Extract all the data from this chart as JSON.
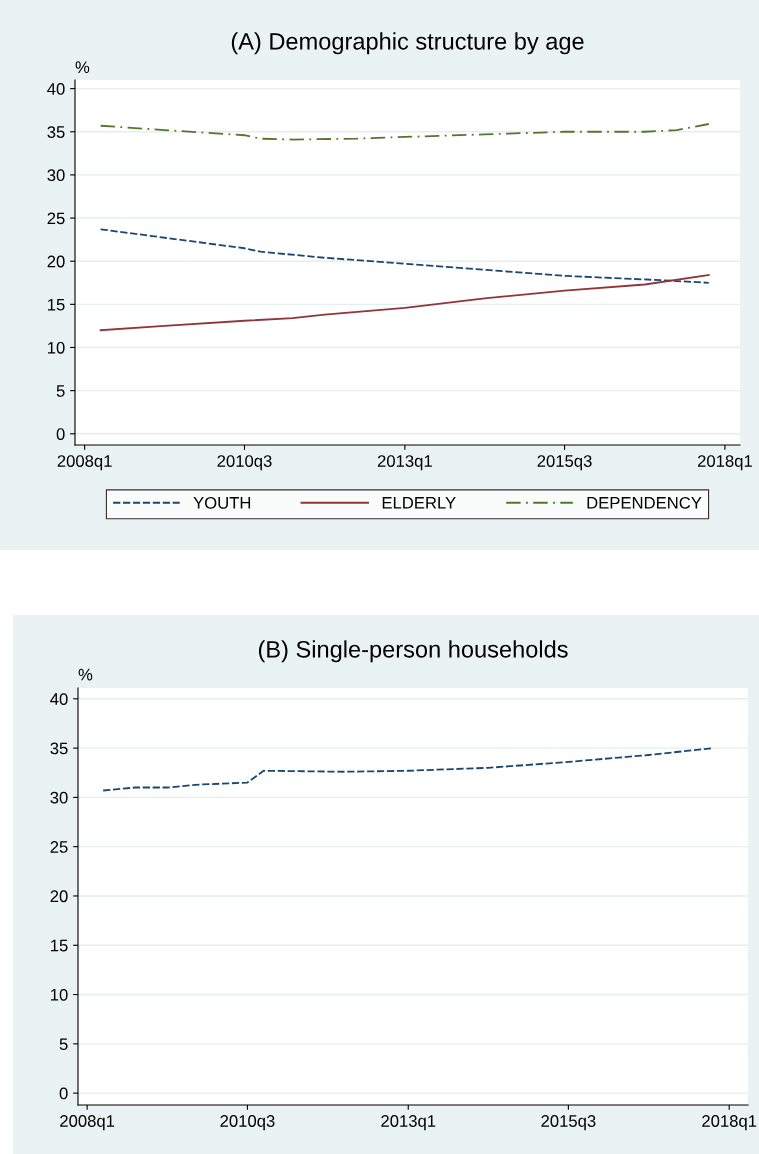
{
  "chart_data": [
    {
      "type": "line",
      "title": "(A) Demographic structure by age",
      "ylabel": "%",
      "xlim": [
        "2007-11-07",
        "2018-03-28"
      ],
      "ylim": [
        -1.3,
        41
      ],
      "xticks": [
        {
          "value": "2008-01",
          "label": "2008q1"
        },
        {
          "value": "2010-07",
          "label": "2010q3"
        },
        {
          "value": "2013-01",
          "label": "2013q1"
        },
        {
          "value": "2015-07",
          "label": "2015q3"
        },
        {
          "value": "2018-01",
          "label": "2018q1"
        }
      ],
      "yticks": [
        0,
        5,
        10,
        15,
        20,
        25,
        30,
        35,
        40
      ],
      "grid": "y",
      "legend": "bottom",
      "marker": "none",
      "series": [
        {
          "name": "YOUTH",
          "color": "#1a476f",
          "line_style": "dashed",
          "x": [
            "2008-04",
            "2010-07",
            "2010-10",
            "2011-10",
            "2013-01",
            "2014-04",
            "2015-07",
            "2017-01",
            "2017-10"
          ],
          "values": [
            23.7,
            21.5,
            21.1,
            20.4,
            19.7,
            19.0,
            18.3,
            17.8,
            17.5
          ]
        },
        {
          "name": "ELDERLY",
          "color": "#90353b",
          "line_style": "solid",
          "x": [
            "2008-04",
            "2009-04",
            "2010-07",
            "2011-04",
            "2011-10",
            "2013-01",
            "2014-04",
            "2015-07",
            "2016-10",
            "2017-10"
          ],
          "values": [
            12.0,
            12.5,
            13.1,
            13.4,
            13.8,
            14.6,
            15.7,
            16.6,
            17.3,
            18.4
          ]
        },
        {
          "name": "DEPENDENCY",
          "color": "#55752f",
          "line_style": "dashdot",
          "x": [
            "2008-04",
            "2009-04",
            "2010-07",
            "2010-10",
            "2011-04",
            "2012-04",
            "2013-01",
            "2014-04",
            "2015-07",
            "2016-10",
            "2017-04",
            "2017-10"
          ],
          "values": [
            35.7,
            35.2,
            34.6,
            34.2,
            34.1,
            34.2,
            34.4,
            34.7,
            35.0,
            35.0,
            35.2,
            35.9
          ]
        }
      ]
    },
    {
      "type": "line",
      "title": "(B) Single-person households",
      "ylabel": "%",
      "xlim": [
        "2007-11-10",
        "2018-04-18"
      ],
      "ylim": [
        -1.2,
        41.1
      ],
      "xticks": [
        {
          "value": "2008-01",
          "label": "2008q1"
        },
        {
          "value": "2010-07",
          "label": "2010q3"
        },
        {
          "value": "2013-01",
          "label": "2013q1"
        },
        {
          "value": "2015-07",
          "label": "2015q3"
        },
        {
          "value": "2018-01",
          "label": "2018q1"
        }
      ],
      "yticks": [
        0,
        5,
        10,
        15,
        20,
        25,
        30,
        35,
        40
      ],
      "grid": "y",
      "marker": "none",
      "series": [
        {
          "color": "#1a476f",
          "line_style": "dashed",
          "x": [
            "2008-04",
            "2008-10",
            "2009-04",
            "2009-10",
            "2010-07",
            "2010-10",
            "2012-01",
            "2013-01",
            "2014-04",
            "2015-07",
            "2016-10",
            "2017-10"
          ],
          "values": [
            30.7,
            31.0,
            31.0,
            31.3,
            31.5,
            32.7,
            32.6,
            32.7,
            33.0,
            33.6,
            34.3,
            35.0
          ]
        }
      ]
    }
  ]
}
